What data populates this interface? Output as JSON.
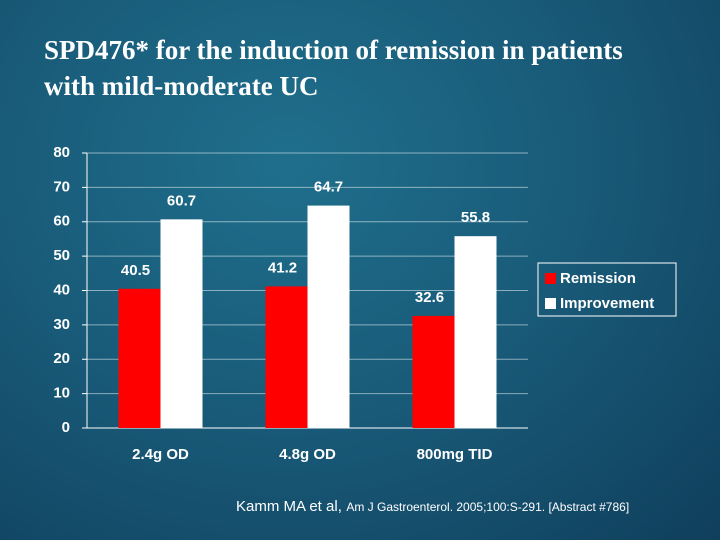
{
  "chart_data": {
    "type": "bar",
    "title": "SPD476* for the induction of remission in patients with mild-moderate UC",
    "categories": [
      "2.4g OD",
      "4.8g OD",
      "800mg TID"
    ],
    "series": [
      {
        "name": "Remission",
        "color": "#ff0000",
        "values": [
          40.5,
          41.2,
          32.6
        ]
      },
      {
        "name": "Improvement",
        "color": "#ffffff",
        "values": [
          60.7,
          64.7,
          55.8
        ]
      }
    ],
    "ylim": [
      0,
      80
    ],
    "yticks": [
      0,
      10,
      20,
      30,
      40,
      50,
      60,
      70,
      80
    ],
    "grid": true,
    "legend": "right"
  },
  "footnote": {
    "author": "Kamm MA et al,",
    "reference": "Am J Gastroenterol. 2005;100:S-291. [Abstract #786]"
  }
}
